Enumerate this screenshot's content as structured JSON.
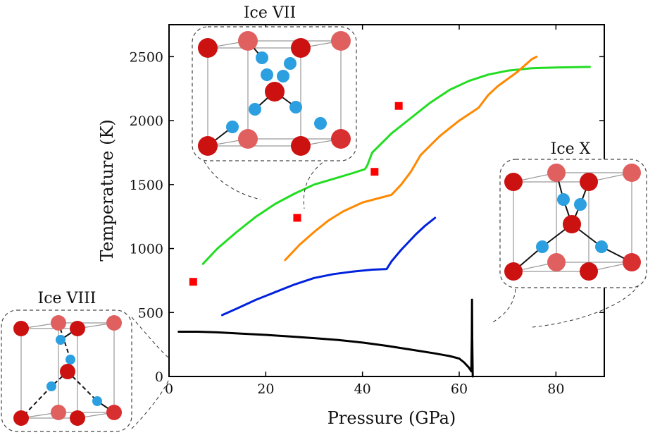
{
  "chart_data": {
    "type": "line",
    "xlabel": "Pressure (GPa)",
    "ylabel": "Temperature (K)",
    "xlim": [
      0,
      90
    ],
    "ylim": [
      0,
      2750
    ],
    "x_ticks": [
      "0",
      "20",
      "40",
      "60",
      "80"
    ],
    "y_ticks": [
      "0",
      "500",
      "1000",
      "1500",
      "2000",
      "2500"
    ],
    "grid": false,
    "series": [
      {
        "color": "#22dd22",
        "points": [
          [
            7,
            880
          ],
          [
            10,
            1000
          ],
          [
            14,
            1130
          ],
          [
            18,
            1250
          ],
          [
            22,
            1350
          ],
          [
            26,
            1430
          ],
          [
            30,
            1500
          ],
          [
            34,
            1545
          ],
          [
            38,
            1590
          ],
          [
            40.5,
            1620
          ],
          [
            41,
            1650
          ],
          [
            42,
            1750
          ],
          [
            46,
            1900
          ],
          [
            50,
            2020
          ],
          [
            54,
            2140
          ],
          [
            58,
            2240
          ],
          [
            62,
            2310
          ],
          [
            66,
            2360
          ],
          [
            70,
            2390
          ],
          [
            75,
            2410
          ],
          [
            80,
            2415
          ],
          [
            87,
            2420
          ]
        ]
      },
      {
        "color": "#ff8800",
        "points": [
          [
            24,
            910
          ],
          [
            27,
            1030
          ],
          [
            30,
            1130
          ],
          [
            33,
            1220
          ],
          [
            36,
            1290
          ],
          [
            40,
            1360
          ],
          [
            44,
            1400
          ],
          [
            46,
            1420
          ],
          [
            48,
            1500
          ],
          [
            50,
            1600
          ],
          [
            52,
            1730
          ],
          [
            56,
            1880
          ],
          [
            60,
            2000
          ],
          [
            64,
            2100
          ],
          [
            66,
            2200
          ],
          [
            68,
            2270
          ],
          [
            72,
            2380
          ],
          [
            75,
            2480
          ],
          [
            76,
            2500
          ]
        ]
      },
      {
        "color": "#0022dd",
        "points": [
          [
            11,
            480
          ],
          [
            14,
            530
          ],
          [
            18,
            600
          ],
          [
            22,
            660
          ],
          [
            26,
            720
          ],
          [
            30,
            770
          ],
          [
            34,
            800
          ],
          [
            38,
            820
          ],
          [
            42,
            835
          ],
          [
            45,
            840
          ],
          [
            46,
            900
          ],
          [
            48,
            990
          ],
          [
            49,
            1030
          ],
          [
            51,
            1110
          ],
          [
            53,
            1180
          ],
          [
            55,
            1240
          ]
        ]
      },
      {
        "color": "#000000",
        "points": [
          [
            2,
            350
          ],
          [
            6,
            350
          ],
          [
            10,
            345
          ],
          [
            15,
            335
          ],
          [
            20,
            325
          ],
          [
            25,
            313
          ],
          [
            30,
            300
          ],
          [
            35,
            285
          ],
          [
            40,
            265
          ],
          [
            45,
            240
          ],
          [
            50,
            210
          ],
          [
            55,
            180
          ],
          [
            58,
            160
          ],
          [
            60,
            140
          ],
          [
            61,
            110
          ],
          [
            62,
            70
          ],
          [
            62.5,
            40
          ],
          [
            62.6,
            300
          ],
          [
            62.65,
            600
          ],
          [
            62.7,
            300
          ],
          [
            62.8,
            0
          ]
        ]
      }
    ],
    "markers": {
      "color": "#ff0000",
      "points": [
        [
          5,
          740
        ],
        [
          26.5,
          1240
        ],
        [
          42.5,
          1600
        ],
        [
          47.5,
          2115
        ]
      ]
    },
    "annotations": [
      "Ice VII",
      "Ice X",
      "Ice VIII"
    ]
  }
}
